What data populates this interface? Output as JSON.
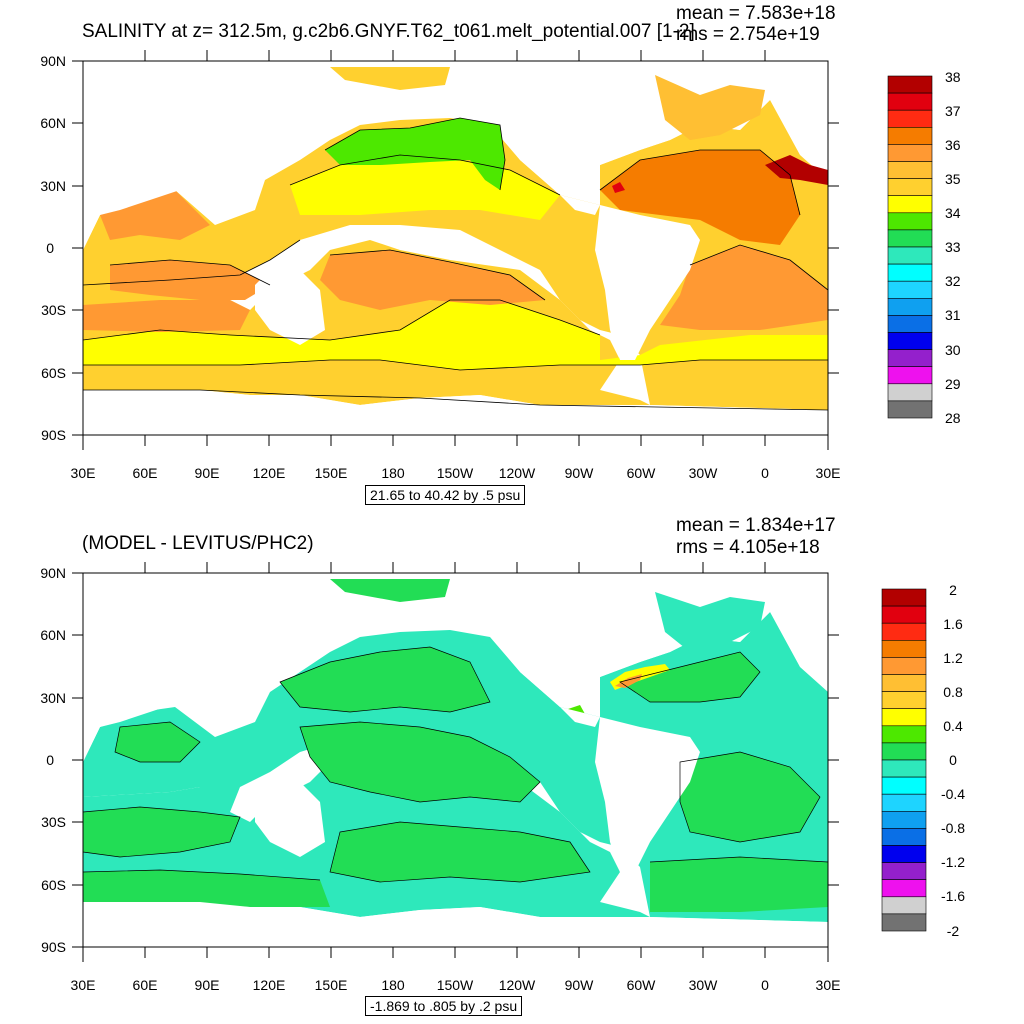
{
  "panels": [
    {
      "title": "SALINITY at z= 312.5m, g.c2b6.GNYF.T62_t061.melt_potential.007 [1-2]",
      "mean": "mean = 7.583e+18",
      "rms": "rms = 2.754e+19",
      "range": "21.65 to 40.42 by .5 psu",
      "ocean_color": "#ffd02f",
      "legend_colors": [
        "#b20000",
        "#e1000f",
        "#ff2b12",
        "#f57c00",
        "#ff9933",
        "#ffbf33",
        "#ffd02f",
        "#ffff00",
        "#4de800",
        "#22dd55",
        "#2ee8bb",
        "#00ffff",
        "#1ed4ff",
        "#0fa0f0",
        "#0a6fe6",
        "#0000ee",
        "#9420cc",
        "#ee11ee",
        "#d0d0d0",
        "#727272"
      ],
      "legend_labels": [
        "38",
        "37",
        "36",
        "35",
        "34",
        "33",
        "32",
        "31",
        "30",
        "29",
        "28"
      ]
    },
    {
      "title": "(MODEL - LEVITUS/PHC2)",
      "mean": "mean = 1.834e+17",
      "rms": "rms = 4.105e+18",
      "range": "-1.869 to .805 by .2 psu",
      "ocean_color": "#22dd55",
      "legend_colors": [
        "#b20000",
        "#e1000f",
        "#ff2b12",
        "#f57c00",
        "#ff9933",
        "#ffbf33",
        "#ffd02f",
        "#ffff00",
        "#4de800",
        "#22dd55",
        "#2ee8bb",
        "#00ffff",
        "#1ed4ff",
        "#0fa0f0",
        "#0a6fe6",
        "#0000ee",
        "#9420cc",
        "#ee11ee",
        "#d0d0d0",
        "#727272"
      ],
      "legend_labels": [
        "2",
        "1.6",
        "1.2",
        "0.8",
        "0.4",
        "0",
        "-0.4",
        "-0.8",
        "-1.2",
        "-1.6",
        "-2"
      ]
    }
  ],
  "axes": {
    "x_ticks": [
      "30E",
      "60E",
      "90E",
      "120E",
      "150E",
      "180",
      "150W",
      "120W",
      "90W",
      "60W",
      "30W",
      "0",
      "30E"
    ],
    "y_ticks": [
      "90N",
      "60N",
      "30N",
      "0",
      "30S",
      "60S",
      "90S"
    ]
  },
  "chart_data": [
    {
      "type": "heatmap",
      "title": "SALINITY at z= 312.5m, g.c2b6.GNYF.T62_t061.melt_potential.007 [1-2]",
      "variable": "salinity",
      "units": "psu",
      "depth": "312.5m",
      "min": 21.65,
      "max": 40.42,
      "interval": 0.5,
      "colorbar_range": [
        28,
        38
      ],
      "x_range": [
        "30E",
        "30E"
      ],
      "y_range": [
        "90S",
        "90N"
      ],
      "mean": 7.583e+18,
      "rms": 2.754e+19
    },
    {
      "type": "heatmap",
      "title": "(MODEL - LEVITUS/PHC2)",
      "variable": "salinity difference",
      "units": "psu",
      "min": -1.869,
      "max": 0.805,
      "interval": 0.2,
      "colorbar_range": [
        -2,
        2
      ],
      "x_range": [
        "30E",
        "30E"
      ],
      "y_range": [
        "90S",
        "90N"
      ],
      "mean": 1.834e+17,
      "rms": 4.105e+18
    }
  ]
}
